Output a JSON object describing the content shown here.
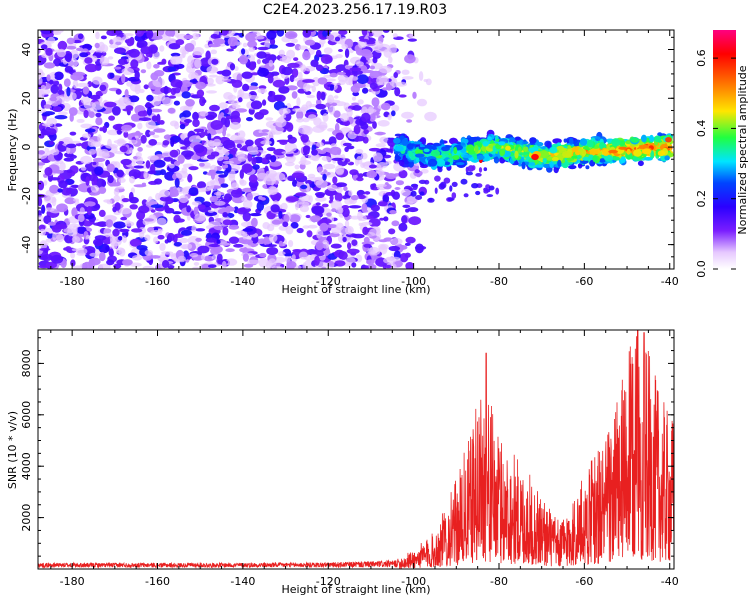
{
  "title": "C2E4.2023.256.17.19.R03",
  "colors": {
    "spectrogram_base": "#6a00ff",
    "snr_line": "#e82020",
    "axes": "#000000",
    "colormap": [
      "#ffffff",
      "#e6c8ff",
      "#7a1eff",
      "#2b00ff",
      "#0044ff",
      "#00e5ff",
      "#20ff40",
      "#ffe600",
      "#ff7000",
      "#ff0000",
      "#ff0080"
    ]
  },
  "chart_data": [
    {
      "type": "heatmap",
      "name": "spectrogram",
      "title": "C2E4.2023.256.17.19.R03",
      "xlabel": "Height of straight line (km)",
      "ylabel": "Frequency (Hz)",
      "xlim": [
        -188,
        -39
      ],
      "ylim": [
        -50,
        48
      ],
      "x_ticks": [
        -180,
        -160,
        -140,
        -120,
        -100,
        -80,
        -60,
        -40
      ],
      "x_tick_labels": [
        "-180",
        "-160",
        "-140",
        "-120",
        "-100",
        "-80",
        "-60",
        "-40"
      ],
      "y_ticks": [
        -40,
        -20,
        0,
        20,
        40
      ],
      "y_tick_labels": [
        "-40",
        "-20",
        "0",
        "20",
        "40"
      ],
      "colorbar": {
        "label": "Normalized spectral amplitude",
        "range": [
          0,
          0.68
        ],
        "ticks": [
          0,
          0.2,
          0.4,
          0.6
        ],
        "tick_labels": [
          "0.0",
          "0.2",
          "0.4",
          "0.6"
        ]
      },
      "features": {
        "noise_region_x": [
          -188,
          -103
        ],
        "noise_amplitude": 0.1,
        "signal_band_x": [
          -104,
          -40
        ],
        "signal_center_freq_at": [
          [
            -104,
            0
          ],
          [
            -95,
            -4
          ],
          [
            -88,
            -2
          ],
          [
            -80,
            0
          ],
          [
            -70,
            -4
          ],
          [
            -60,
            -2
          ],
          [
            -50,
            -1
          ],
          [
            -40,
            0
          ]
        ],
        "signal_band_halfwidth_hz": 5,
        "signal_peak_amplitude": 0.68
      }
    },
    {
      "type": "line",
      "name": "snr",
      "xlabel": "Height of straight line (km)",
      "ylabel": "SNR (10 * v/v)",
      "xlim": [
        -188,
        -39
      ],
      "ylim": [
        0,
        9300
      ],
      "x_ticks": [
        -180,
        -160,
        -140,
        -120,
        -100,
        -80,
        -60,
        -40
      ],
      "x_tick_labels": [
        "-180",
        "-160",
        "-140",
        "-120",
        "-100",
        "-80",
        "-60",
        "-40"
      ],
      "y_ticks": [
        2000,
        4000,
        6000,
        8000
      ],
      "y_tick_labels": [
        "2000",
        "4000",
        "6000",
        "8000"
      ],
      "envelope": [
        [
          -188,
          200
        ],
        [
          -150,
          200
        ],
        [
          -120,
          220
        ],
        [
          -105,
          300
        ],
        [
          -100,
          600
        ],
        [
          -95,
          1200
        ],
        [
          -90,
          2800
        ],
        [
          -86,
          4600
        ],
        [
          -84,
          6200
        ],
        [
          -82,
          5200
        ],
        [
          -80,
          4200
        ],
        [
          -75,
          3400
        ],
        [
          -70,
          2400
        ],
        [
          -66,
          1500
        ],
        [
          -62,
          2400
        ],
        [
          -58,
          3600
        ],
        [
          -55,
          4200
        ],
        [
          -52,
          5500
        ],
        [
          -48,
          7600
        ],
        [
          -45,
          6800
        ],
        [
          -42,
          5400
        ],
        [
          -40,
          4800
        ]
      ],
      "peaks": [
        [
          -83,
          8400
        ],
        [
          -47.5,
          9300
        ],
        [
          -46,
          9200
        ]
      ]
    }
  ]
}
